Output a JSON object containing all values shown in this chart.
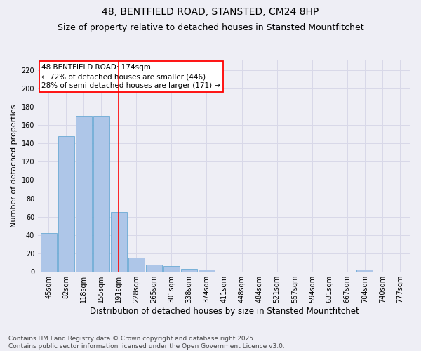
{
  "title": "48, BENTFIELD ROAD, STANSTED, CM24 8HP",
  "subtitle": "Size of property relative to detached houses in Stansted Mountfitchet",
  "xlabel": "Distribution of detached houses by size in Stansted Mountfitchet",
  "ylabel": "Number of detached properties",
  "categories": [
    "45sqm",
    "82sqm",
    "118sqm",
    "155sqm",
    "191sqm",
    "228sqm",
    "265sqm",
    "301sqm",
    "338sqm",
    "374sqm",
    "411sqm",
    "448sqm",
    "484sqm",
    "521sqm",
    "557sqm",
    "594sqm",
    "631sqm",
    "667sqm",
    "704sqm",
    "740sqm",
    "777sqm"
  ],
  "values": [
    42,
    148,
    170,
    170,
    65,
    15,
    8,
    6,
    3,
    2,
    0,
    0,
    0,
    0,
    0,
    0,
    0,
    0,
    2,
    0,
    0
  ],
  "bar_color": "#aec6e8",
  "bar_edgecolor": "#6aaad4",
  "bar_linewidth": 0.6,
  "redline_index": 4,
  "redline_label": "48 BENTFIELD ROAD: 174sqm",
  "annotation_line1": "← 72% of detached houses are smaller (446)",
  "annotation_line2": "28% of semi-detached houses are larger (171) →",
  "annotation_box_edgecolor": "red",
  "annotation_box_facecolor": "white",
  "redline_color": "red",
  "ylim": [
    0,
    230
  ],
  "yticks": [
    0,
    20,
    40,
    60,
    80,
    100,
    120,
    140,
    160,
    180,
    200,
    220
  ],
  "grid_color": "#d8d8e8",
  "bg_color": "#eeeef5",
  "footnote": "Contains HM Land Registry data © Crown copyright and database right 2025.\nContains public sector information licensed under the Open Government Licence v3.0.",
  "title_fontsize": 10,
  "subtitle_fontsize": 9,
  "xlabel_fontsize": 8.5,
  "ylabel_fontsize": 8,
  "tick_fontsize": 7,
  "annot_fontsize": 7.5,
  "footnote_fontsize": 6.5
}
